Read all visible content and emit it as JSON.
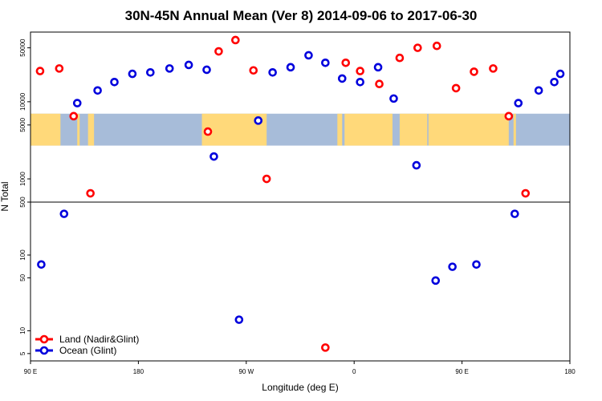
{
  "chart_data": {
    "type": "scatter",
    "title": "30N-45N Annual Mean (Ver 8)   2014-09-06 to 2017-06-30",
    "xlabel": "Longitude (deg E)",
    "ylabel": "N Total",
    "x_ticks": [
      {
        "value": 90,
        "label": "90 E"
      },
      {
        "value": 180,
        "label": "180"
      },
      {
        "value": 270,
        "label": "90 W"
      },
      {
        "value": 360,
        "label": "0"
      },
      {
        "value": 450,
        "label": "90 E"
      },
      {
        "value": 540,
        "label": "180"
      }
    ],
    "xlim": [
      90,
      540
    ],
    "y_scale": "split-log",
    "y_break": 500,
    "y_lower_range": [
      4,
      500
    ],
    "y_upper_range": [
      500,
      80000
    ],
    "y_ticks": [
      5,
      10,
      50,
      100,
      500,
      1000,
      5000,
      10000,
      50000
    ],
    "y_tick_labels": [
      "5",
      "10",
      "50",
      "100",
      "500",
      "1000",
      "5000",
      "10000",
      "50000"
    ],
    "map_band": {
      "y_from": 2700,
      "y_to": 7000,
      "ocean_color": "#a7bcd9",
      "land_color": "#ffd97a"
    },
    "series": [
      {
        "name": "Land (Nadir&Glint)",
        "color": "#ff0000",
        "points": [
          {
            "x": 98,
            "y": 25000
          },
          {
            "x": 114,
            "y": 27000
          },
          {
            "x": 126,
            "y": 6500
          },
          {
            "x": 140,
            "y": 650
          },
          {
            "x": 238,
            "y": 4100
          },
          {
            "x": 247,
            "y": 45000
          },
          {
            "x": 261,
            "y": 63000
          },
          {
            "x": 276,
            "y": 25500
          },
          {
            "x": 287,
            "y": 1000
          },
          {
            "x": 336,
            "y": 6
          },
          {
            "x": 353,
            "y": 32000
          },
          {
            "x": 365,
            "y": 25000
          },
          {
            "x": 381,
            "y": 17000
          },
          {
            "x": 398,
            "y": 37000
          },
          {
            "x": 413,
            "y": 50000
          },
          {
            "x": 429,
            "y": 53000
          },
          {
            "x": 445,
            "y": 15000
          },
          {
            "x": 460,
            "y": 24500
          },
          {
            "x": 476,
            "y": 27000
          },
          {
            "x": 489,
            "y": 6500
          },
          {
            "x": 503,
            "y": 650
          }
        ]
      },
      {
        "name": "Ocean (Glint)",
        "color": "#0000dd",
        "points": [
          {
            "x": 99,
            "y": 75
          },
          {
            "x": 118,
            "y": 350
          },
          {
            "x": 129,
            "y": 9600
          },
          {
            "x": 146,
            "y": 14000
          },
          {
            "x": 160,
            "y": 18000
          },
          {
            "x": 175,
            "y": 23000
          },
          {
            "x": 190,
            "y": 24000
          },
          {
            "x": 206,
            "y": 27000
          },
          {
            "x": 222,
            "y": 30000
          },
          {
            "x": 237,
            "y": 26000
          },
          {
            "x": 243,
            "y": 1950
          },
          {
            "x": 264,
            "y": 14
          },
          {
            "x": 280,
            "y": 5700
          },
          {
            "x": 292,
            "y": 24000
          },
          {
            "x": 307,
            "y": 28000
          },
          {
            "x": 322,
            "y": 40000
          },
          {
            "x": 336,
            "y": 32000
          },
          {
            "x": 350,
            "y": 20000
          },
          {
            "x": 365,
            "y": 18000
          },
          {
            "x": 380,
            "y": 28000
          },
          {
            "x": 393,
            "y": 11000
          },
          {
            "x": 412,
            "y": 1500
          },
          {
            "x": 428,
            "y": 46
          },
          {
            "x": 442,
            "y": 70
          },
          {
            "x": 462,
            "y": 75
          },
          {
            "x": 494,
            "y": 350
          },
          {
            "x": 497,
            "y": 9600
          },
          {
            "x": 514,
            "y": 14000
          },
          {
            "x": 527,
            "y": 18000
          },
          {
            "x": 532,
            "y": 23000
          }
        ]
      }
    ],
    "legend": {
      "position": "bottom-left",
      "entries": [
        "Land (Nadir&Glint)",
        "Ocean (Glint)"
      ]
    }
  }
}
